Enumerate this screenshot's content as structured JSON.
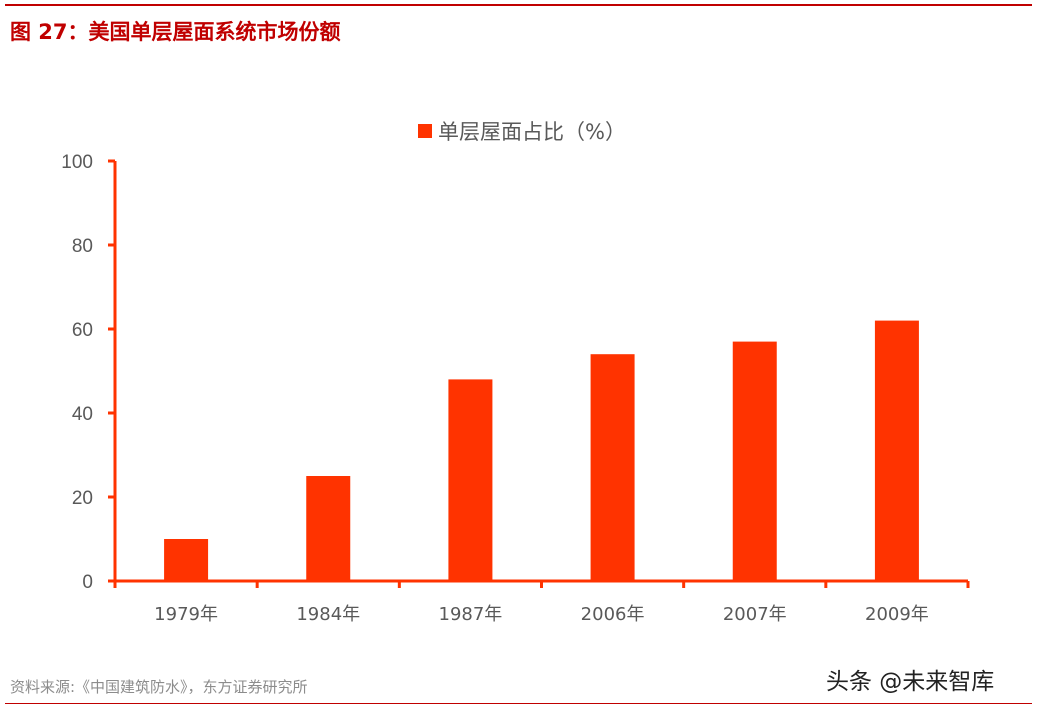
{
  "figure": {
    "title": "图 27：美国单层屋面系统市场份额",
    "source": "资料来源:《中国建筑防水》，东方证券研究所",
    "watermark": "头条 @未来智库"
  },
  "colors": {
    "bar": "#ff3300",
    "axis": "#ff3300",
    "title": "#c00000",
    "rule": "#c00000",
    "tick_text": "#595959"
  },
  "chart_data": {
    "type": "bar",
    "title": "图 27：美国单层屋面系统市场份额",
    "categories": [
      "1979年",
      "1984年",
      "1987年",
      "2006年",
      "2007年",
      "2009年"
    ],
    "series": [
      {
        "name": "单层屋面占比（%）",
        "values": [
          10,
          25,
          48,
          54,
          57,
          62
        ]
      }
    ],
    "xlabel": "",
    "ylabel": "",
    "ylim": [
      0,
      100
    ],
    "yticks": [
      0,
      20,
      40,
      60,
      80,
      100
    ],
    "grid": false,
    "legend_position": "top"
  }
}
